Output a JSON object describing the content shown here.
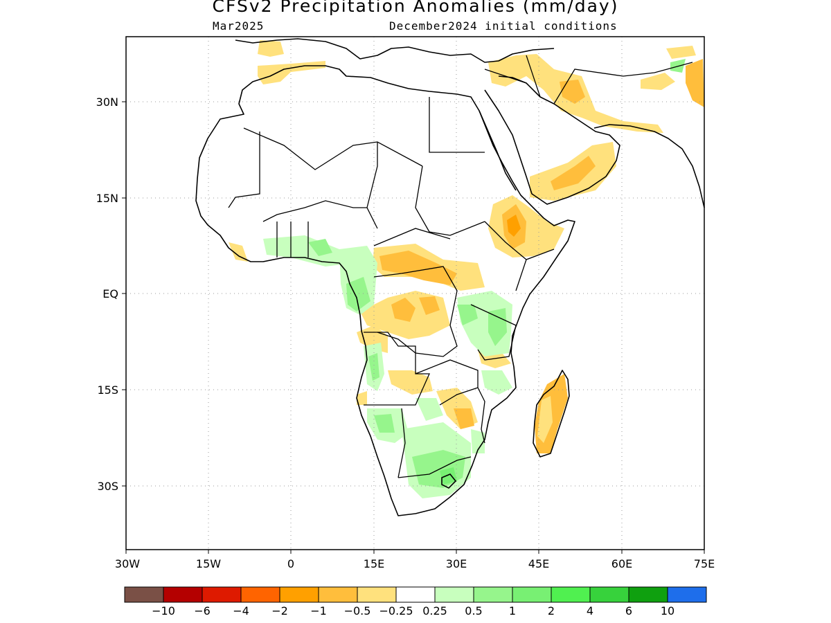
{
  "title": "CFSv2 Precipitation Anomalies (mm/day)",
  "valid_month": "Mar2025",
  "initial_conditions": "December2024 initial conditions",
  "axes": {
    "lat_labels": [
      {
        "text": "30N",
        "value": 30
      },
      {
        "text": "15N",
        "value": 15
      },
      {
        "text": "EQ",
        "value": 0
      },
      {
        "text": "15S",
        "value": -15
      },
      {
        "text": "30S",
        "value": -30
      }
    ],
    "lon_labels": [
      {
        "text": "30W",
        "value": -30
      },
      {
        "text": "15W",
        "value": -15
      },
      {
        "text": "0",
        "value": 0
      },
      {
        "text": "15E",
        "value": 15
      },
      {
        "text": "30E",
        "value": 30
      },
      {
        "text": "45E",
        "value": 45
      },
      {
        "text": "60E",
        "value": 60
      },
      {
        "text": "75E",
        "value": 75
      }
    ],
    "lon_range": [
      -30,
      75
    ],
    "lat_range": [
      -40,
      40
    ],
    "grid": "dotted"
  },
  "colorbar": {
    "colors": [
      "#7a5046",
      "#b40000",
      "#de1a00",
      "#ff6400",
      "#ffa000",
      "#ffbe3c",
      "#ffe17d",
      "#ffffff",
      "#c8ffbe",
      "#96f58c",
      "#78f073",
      "#50f050",
      "#37d23c",
      "#0fa00f",
      "#1e6eeb"
    ],
    "labels": [
      "−10",
      "−6",
      "−4",
      "−2",
      "−1",
      "−0.5",
      "−0.25",
      "0.25",
      "0.5",
      "1",
      "2",
      "4",
      "6",
      "10"
    ]
  },
  "legend_colors": {
    "dry_light": "#ffe17d",
    "dry_medium": "#ffbe3c",
    "dry_strong": "#ffa000",
    "wet_light": "#c8ffbe",
    "wet_medium": "#96f58c",
    "wet_strong": "#78f073"
  }
}
